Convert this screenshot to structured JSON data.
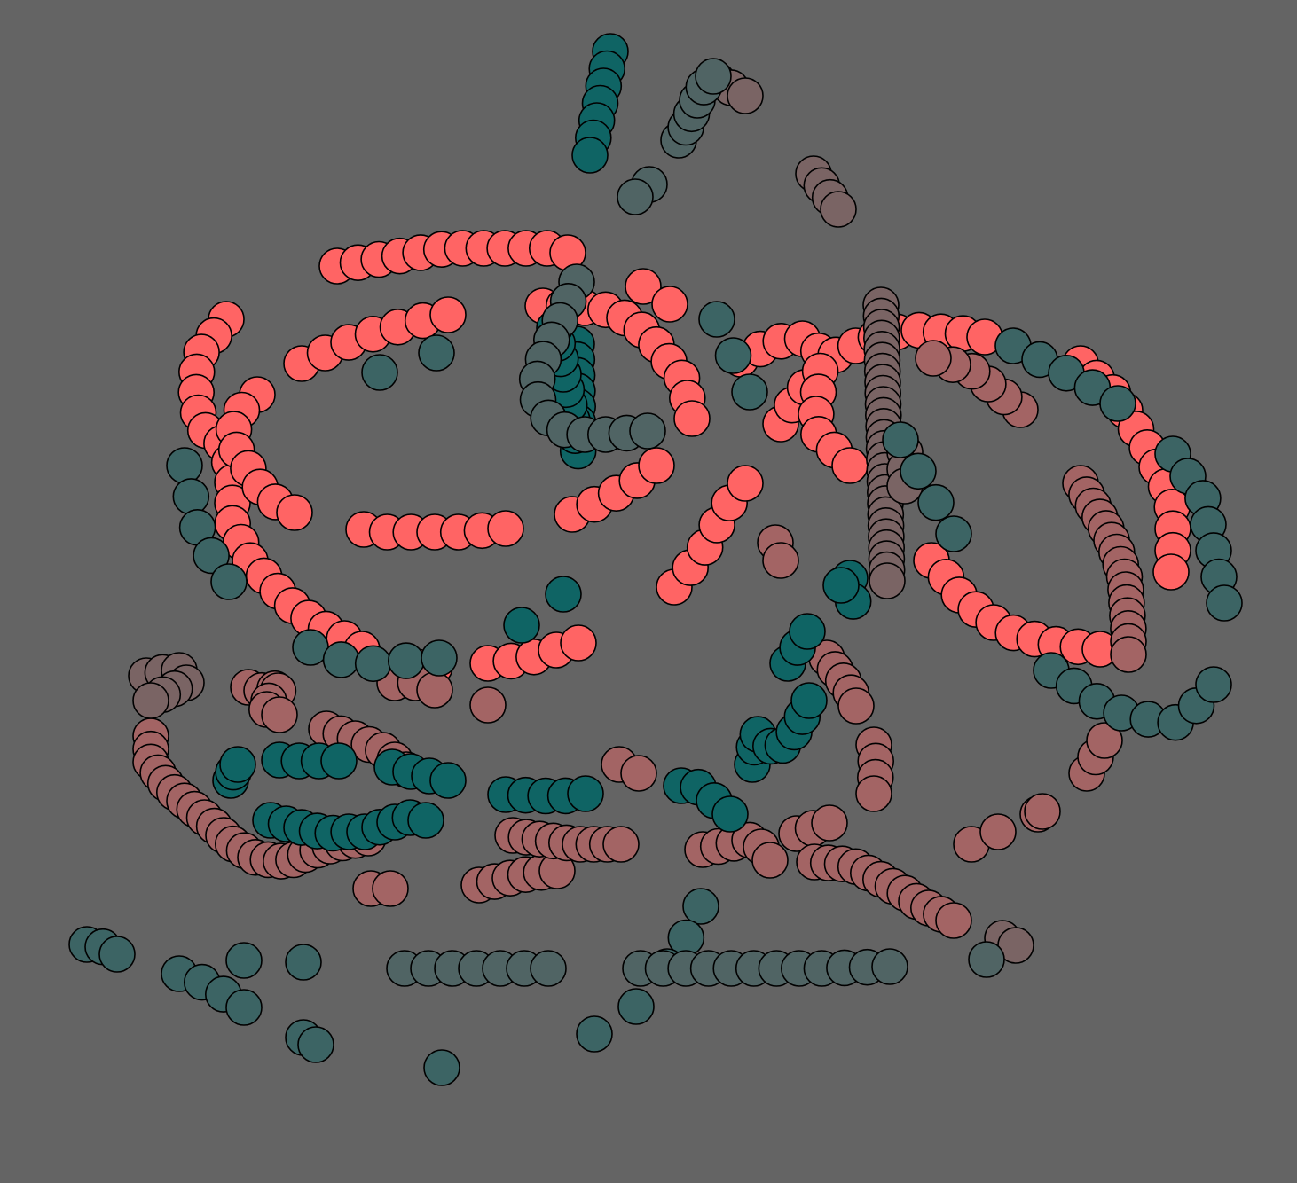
{
  "scene": {
    "description_kind": "generative dot pattern",
    "background": "#646464",
    "stroke": "#000000",
    "palette": {
      "coral": "#ff6464",
      "dusty_rose": "#a36464",
      "mauve": "#7a6464",
      "dark_teal": "#0f6464",
      "slate_teal": "#3c6464",
      "grey_teal": "#506464"
    }
  },
  "dot_groups": [
    {
      "color": "coral",
      "count": 130
    },
    {
      "color": "dusty_rose",
      "count": 120
    },
    {
      "color": "mauve",
      "count": 45
    },
    {
      "color": "dark_teal",
      "count": 70
    },
    {
      "color": "slate_teal",
      "count": 55
    },
    {
      "color": "grey_teal",
      "count": 40
    }
  ]
}
